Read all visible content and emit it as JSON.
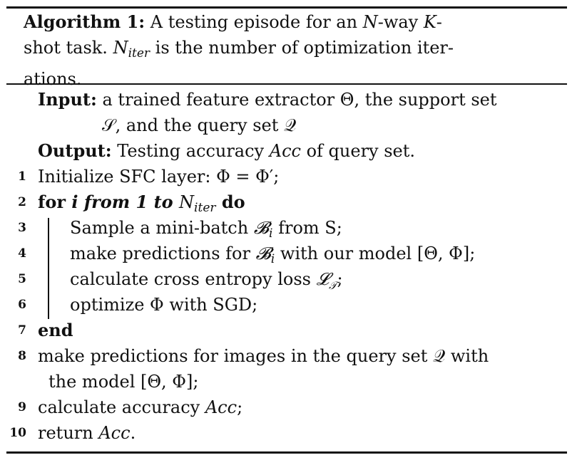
{
  "algorithm": {
    "caption": {
      "label": "Algorithm 1:",
      "text_line1": " A testing episode for an ",
      "N": "N",
      "way": "-way ",
      "K": "K",
      "dash": "-",
      "text_line2a": "shot task. ",
      "Niter_base": "N",
      "Niter_sub": "iter",
      "text_line2b": " is the number of optimization iter-",
      "text_line3": "ations."
    },
    "input": {
      "label": "Input:",
      "text1": " a trained feature extractor Θ, the support set",
      "text2": "𝒮, and the query set 𝒬"
    },
    "output": {
      "label": "Output:",
      "text_a": " Testing accuracy ",
      "acc": "Acc",
      "text_b": " of query set."
    },
    "lines": {
      "l1": {
        "num": "1",
        "text": "Initialize SFC layer: Φ = Φ′;"
      },
      "l2": {
        "num": "2",
        "kw_for": "for",
        "iter_text": " i from 1 to ",
        "N": "N",
        "sub": "iter",
        "kw_do": " do"
      },
      "l3": {
        "num": "3",
        "text_a": "Sample a mini-batch ",
        "B": "𝓑",
        "sub": "i",
        "text_b": " from S;"
      },
      "l4": {
        "num": "4",
        "text_a": "make predictions for ",
        "B": "𝓑",
        "sub": "i",
        "text_b": " with our model [Θ, Φ];"
      },
      "l5": {
        "num": "5",
        "text_a": "calculate cross entropy loss ",
        "L": "𝓛",
        "sub": "𝒯",
        "text_b": ";"
      },
      "l6": {
        "num": "6",
        "text": "optimize Φ with SGD;"
      },
      "l7": {
        "num": "7",
        "kw_end": "end"
      },
      "l8": {
        "num": "8",
        "text1": "make predictions for images in the query set 𝒬 with",
        "text2": "the model [Θ, Φ];"
      },
      "l9": {
        "num": "9",
        "text_a": "calculate accuracy ",
        "acc": "Acc",
        "text_b": ";"
      },
      "l10": {
        "num": "10",
        "text_a": "return ",
        "acc": "Acc",
        "text_b": "."
      }
    }
  }
}
